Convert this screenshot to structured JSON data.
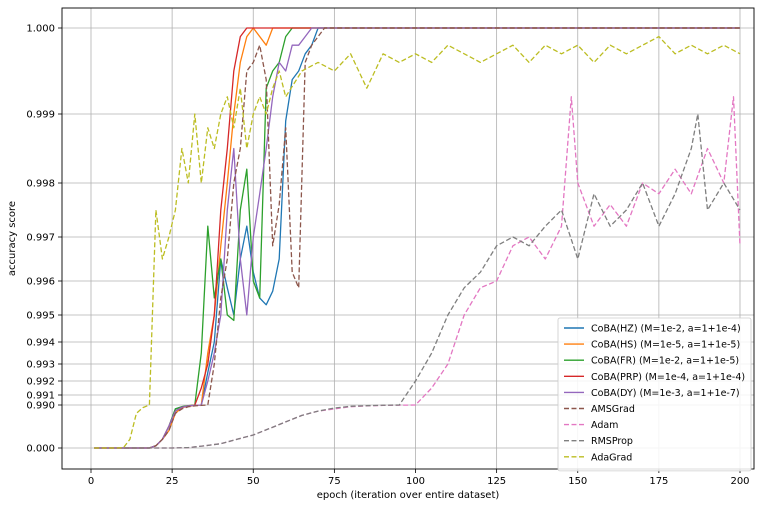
{
  "chart_data": {
    "type": "line",
    "xlabel": "epoch (iteration over entire dataset)",
    "ylabel": "accuracy score",
    "xlim": [
      -5,
      205
    ],
    "x_ticks": [
      0,
      25,
      50,
      75,
      100,
      125,
      150,
      175,
      200
    ],
    "y_scale": "nonlinear (compressed near 1.0)",
    "y_ticks": [
      {
        "value": 0.0,
        "label": "0.000"
      },
      {
        "value": 0.99,
        "label": "0.990"
      },
      {
        "value": 0.991,
        "label": "0.991"
      },
      {
        "value": 0.992,
        "label": "0.992"
      },
      {
        "value": 0.993,
        "label": "0.993"
      },
      {
        "value": 0.994,
        "label": "0.994"
      },
      {
        "value": 0.995,
        "label": "0.995"
      },
      {
        "value": 0.996,
        "label": "0.996"
      },
      {
        "value": 0.997,
        "label": "0.997"
      },
      {
        "value": 0.998,
        "label": "0.998"
      },
      {
        "value": 0.999,
        "label": "0.999"
      },
      {
        "value": 1.0,
        "label": "1.000"
      }
    ],
    "grid": true,
    "legend_position": "lower-right",
    "series": [
      {
        "name": "CoBA(HZ) (M=1e-2, a=1+1e-4)",
        "color": "#1f77b4",
        "style": "solid",
        "points": [
          [
            1,
            0
          ],
          [
            15,
            0
          ],
          [
            18,
            0.001
          ],
          [
            20,
            0.05
          ],
          [
            22,
            0.2
          ],
          [
            24,
            0.5
          ],
          [
            26,
            0.9
          ],
          [
            28,
            0.95
          ],
          [
            30,
            0.97
          ],
          [
            32,
            0.985
          ],
          [
            34,
            0.99
          ],
          [
            36,
            0.9925
          ],
          [
            38,
            0.994
          ],
          [
            40,
            0.9965
          ],
          [
            42,
            0.9958
          ],
          [
            44,
            0.995
          ],
          [
            46,
            0.9965
          ],
          [
            48,
            0.9972
          ],
          [
            50,
            0.9962
          ],
          [
            52,
            0.9955
          ],
          [
            54,
            0.9953
          ],
          [
            56,
            0.9957
          ],
          [
            58,
            0.9965
          ],
          [
            60,
            0.9989
          ],
          [
            62,
            0.9994
          ],
          [
            64,
            0.9995
          ],
          [
            66,
            0.9997
          ],
          [
            68,
            0.9998
          ],
          [
            70,
            1.0
          ],
          [
            200,
            1.0
          ]
        ]
      },
      {
        "name": "CoBA(HS) (M=1e-5, a=1+1e-5)",
        "color": "#ff7f0e",
        "style": "solid",
        "points": [
          [
            1,
            0
          ],
          [
            15,
            0
          ],
          [
            18,
            0.001
          ],
          [
            20,
            0.05
          ],
          [
            22,
            0.2
          ],
          [
            24,
            0.4
          ],
          [
            26,
            0.8
          ],
          [
            28,
            0.93
          ],
          [
            30,
            0.96
          ],
          [
            32,
            0.98
          ],
          [
            34,
            0.99
          ],
          [
            36,
            0.9935
          ],
          [
            38,
            0.995
          ],
          [
            40,
            0.9968
          ],
          [
            42,
            0.998
          ],
          [
            44,
            0.999
          ],
          [
            46,
            0.9996
          ],
          [
            48,
            0.9999
          ],
          [
            50,
            1.0
          ],
          [
            54,
            0.9998
          ],
          [
            56,
            1.0
          ],
          [
            200,
            1.0
          ]
        ]
      },
      {
        "name": "CoBA(FR) (M=1e-2, a=1+1e-5)",
        "color": "#2ca02c",
        "style": "solid",
        "points": [
          [
            1,
            0
          ],
          [
            15,
            0
          ],
          [
            18,
            0.001
          ],
          [
            20,
            0.05
          ],
          [
            22,
            0.2
          ],
          [
            24,
            0.5
          ],
          [
            26,
            0.9
          ],
          [
            28,
            0.95
          ],
          [
            30,
            0.975
          ],
          [
            32,
            0.99
          ],
          [
            34,
            0.9935
          ],
          [
            36,
            0.9972
          ],
          [
            38,
            0.9955
          ],
          [
            40,
            0.9965
          ],
          [
            42,
            0.995
          ],
          [
            44,
            0.9948
          ],
          [
            46,
            0.9975
          ],
          [
            48,
            0.9982
          ],
          [
            50,
            0.996
          ],
          [
            52,
            0.9955
          ],
          [
            54,
            0.9993
          ],
          [
            56,
            0.9995
          ],
          [
            58,
            0.9996
          ],
          [
            60,
            0.9999
          ],
          [
            62,
            1.0
          ],
          [
            200,
            1.0
          ]
        ]
      },
      {
        "name": "CoBA(PRP) (M=1e-4, a=1+1e-4)",
        "color": "#d62728",
        "style": "solid",
        "points": [
          [
            1,
            0
          ],
          [
            15,
            0
          ],
          [
            18,
            0.001
          ],
          [
            20,
            0.05
          ],
          [
            22,
            0.2
          ],
          [
            24,
            0.5
          ],
          [
            26,
            0.85
          ],
          [
            28,
            0.94
          ],
          [
            30,
            0.97
          ],
          [
            32,
            0.985
          ],
          [
            34,
            0.9915
          ],
          [
            36,
            0.993
          ],
          [
            38,
            0.995
          ],
          [
            40,
            0.9975
          ],
          [
            42,
            0.9985
          ],
          [
            44,
            0.9995
          ],
          [
            46,
            0.9999
          ],
          [
            48,
            1.0
          ],
          [
            200,
            1.0
          ]
        ]
      },
      {
        "name": "CoBA(DY) (M=1e-3, a=1+1e-7)",
        "color": "#9467bd",
        "style": "solid",
        "points": [
          [
            1,
            0
          ],
          [
            15,
            0
          ],
          [
            18,
            0.001
          ],
          [
            20,
            0.05
          ],
          [
            22,
            0.2
          ],
          [
            24,
            0.5
          ],
          [
            26,
            0.85
          ],
          [
            28,
            0.94
          ],
          [
            30,
            0.97
          ],
          [
            32,
            0.98
          ],
          [
            34,
            0.99
          ],
          [
            36,
            0.992
          ],
          [
            38,
            0.9935
          ],
          [
            40,
            0.995
          ],
          [
            42,
            0.9975
          ],
          [
            44,
            0.9985
          ],
          [
            46,
            0.9965
          ],
          [
            48,
            0.995
          ],
          [
            50,
            0.997
          ],
          [
            52,
            0.9978
          ],
          [
            54,
            0.9985
          ],
          [
            56,
            0.9992
          ],
          [
            58,
            0.9996
          ],
          [
            60,
            0.9995
          ],
          [
            62,
            0.9998
          ],
          [
            64,
            0.9998
          ],
          [
            66,
            0.9999
          ],
          [
            68,
            1.0
          ],
          [
            200,
            1.0
          ]
        ]
      },
      {
        "name": "AMSGrad",
        "color": "#8c564b",
        "style": "dashed",
        "points": [
          [
            1,
            0
          ],
          [
            15,
            0
          ],
          [
            18,
            0.001
          ],
          [
            20,
            0.05
          ],
          [
            22,
            0.2
          ],
          [
            24,
            0.4
          ],
          [
            26,
            0.8
          ],
          [
            28,
            0.9
          ],
          [
            30,
            0.95
          ],
          [
            32,
            0.97
          ],
          [
            34,
            0.98
          ],
          [
            36,
            0.99
          ],
          [
            38,
            0.993
          ],
          [
            40,
            0.9955
          ],
          [
            42,
            0.9965
          ],
          [
            44,
            0.998
          ],
          [
            46,
            0.9985
          ],
          [
            48,
            0.9995
          ],
          [
            50,
            0.9996
          ],
          [
            52,
            0.9998
          ],
          [
            54,
            0.9994
          ],
          [
            56,
            0.9968
          ],
          [
            58,
            0.9976
          ],
          [
            60,
            0.9988
          ],
          [
            62,
            0.9962
          ],
          [
            64,
            0.9958
          ],
          [
            66,
            0.9996
          ],
          [
            68,
            0.9998
          ],
          [
            70,
            0.9999
          ],
          [
            72,
            1.0
          ],
          [
            200,
            1.0
          ]
        ]
      },
      {
        "name": "Adam",
        "color": "#e377c2",
        "style": "dashed",
        "points": [
          [
            1,
            0
          ],
          [
            20,
            0
          ],
          [
            25,
            0.001
          ],
          [
            30,
            0.01
          ],
          [
            35,
            0.05
          ],
          [
            40,
            0.1
          ],
          [
            45,
            0.2
          ],
          [
            50,
            0.3
          ],
          [
            55,
            0.45
          ],
          [
            60,
            0.6
          ],
          [
            65,
            0.75
          ],
          [
            70,
            0.85
          ],
          [
            75,
            0.9
          ],
          [
            80,
            0.95
          ],
          [
            85,
            0.97
          ],
          [
            90,
            0.98
          ],
          [
            95,
            0.985
          ],
          [
            100,
            0.99
          ],
          [
            105,
            0.9915
          ],
          [
            110,
            0.993
          ],
          [
            115,
            0.995
          ],
          [
            120,
            0.9958
          ],
          [
            125,
            0.996
          ],
          [
            130,
            0.9968
          ],
          [
            135,
            0.997
          ],
          [
            140,
            0.9965
          ],
          [
            145,
            0.9972
          ],
          [
            148,
            0.9992
          ],
          [
            150,
            0.998
          ],
          [
            155,
            0.9972
          ],
          [
            160,
            0.9976
          ],
          [
            165,
            0.9972
          ],
          [
            170,
            0.998
          ],
          [
            175,
            0.9978
          ],
          [
            180,
            0.9982
          ],
          [
            185,
            0.9978
          ],
          [
            190,
            0.9985
          ],
          [
            195,
            0.998
          ],
          [
            198,
            0.9992
          ],
          [
            200,
            0.9968
          ]
        ]
      },
      {
        "name": "RMSProp",
        "color": "#7f7f7f",
        "style": "dashed",
        "points": [
          [
            1,
            0
          ],
          [
            20,
            0
          ],
          [
            25,
            0.001
          ],
          [
            30,
            0.01
          ],
          [
            35,
            0.05
          ],
          [
            40,
            0.1
          ],
          [
            45,
            0.2
          ],
          [
            50,
            0.3
          ],
          [
            55,
            0.45
          ],
          [
            60,
            0.6
          ],
          [
            65,
            0.75
          ],
          [
            70,
            0.85
          ],
          [
            75,
            0.92
          ],
          [
            80,
            0.96
          ],
          [
            85,
            0.975
          ],
          [
            90,
            0.985
          ],
          [
            95,
            0.99
          ],
          [
            100,
            0.992
          ],
          [
            105,
            0.9935
          ],
          [
            110,
            0.995
          ],
          [
            115,
            0.9958
          ],
          [
            120,
            0.9962
          ],
          [
            125,
            0.9968
          ],
          [
            130,
            0.997
          ],
          [
            135,
            0.9968
          ],
          [
            140,
            0.9972
          ],
          [
            145,
            0.9975
          ],
          [
            150,
            0.9965
          ],
          [
            155,
            0.9978
          ],
          [
            160,
            0.9972
          ],
          [
            165,
            0.9975
          ],
          [
            170,
            0.998
          ],
          [
            175,
            0.9972
          ],
          [
            180,
            0.9978
          ],
          [
            185,
            0.9985
          ],
          [
            187,
            0.999
          ],
          [
            190,
            0.9975
          ],
          [
            195,
            0.998
          ],
          [
            200,
            0.9975
          ]
        ]
      },
      {
        "name": "AdaGrad",
        "color": "#bcbd22",
        "style": "dashed",
        "points": [
          [
            1,
            0
          ],
          [
            8,
            0
          ],
          [
            10,
            0.01
          ],
          [
            12,
            0.2
          ],
          [
            14,
            0.8
          ],
          [
            16,
            0.93
          ],
          [
            18,
            0.99
          ],
          [
            20,
            0.9975
          ],
          [
            22,
            0.9965
          ],
          [
            24,
            0.997
          ],
          [
            26,
            0.9975
          ],
          [
            28,
            0.9985
          ],
          [
            30,
            0.998
          ],
          [
            32,
            0.999
          ],
          [
            34,
            0.998
          ],
          [
            36,
            0.9988
          ],
          [
            38,
            0.9985
          ],
          [
            40,
            0.999
          ],
          [
            42,
            0.9992
          ],
          [
            44,
            0.9988
          ],
          [
            46,
            0.9993
          ],
          [
            48,
            0.9985
          ],
          [
            50,
            0.999
          ],
          [
            52,
            0.9992
          ],
          [
            54,
            0.999
          ],
          [
            56,
            0.9993
          ],
          [
            58,
            0.9995
          ],
          [
            60,
            0.9992
          ],
          [
            65,
            0.9995
          ],
          [
            70,
            0.9996
          ],
          [
            75,
            0.9995
          ],
          [
            80,
            0.9997
          ],
          [
            85,
            0.9993
          ],
          [
            90,
            0.9997
          ],
          [
            95,
            0.9996
          ],
          [
            100,
            0.9997
          ],
          [
            105,
            0.9996
          ],
          [
            110,
            0.9998
          ],
          [
            115,
            0.9997
          ],
          [
            120,
            0.9996
          ],
          [
            125,
            0.9997
          ],
          [
            130,
            0.9998
          ],
          [
            135,
            0.9996
          ],
          [
            140,
            0.9998
          ],
          [
            145,
            0.9997
          ],
          [
            150,
            0.9998
          ],
          [
            155,
            0.9996
          ],
          [
            160,
            0.9998
          ],
          [
            165,
            0.9997
          ],
          [
            170,
            0.9998
          ],
          [
            175,
            0.9999
          ],
          [
            180,
            0.9997
          ],
          [
            185,
            0.9998
          ],
          [
            190,
            0.9997
          ],
          [
            195,
            0.9998
          ],
          [
            200,
            0.9997
          ]
        ]
      }
    ]
  }
}
